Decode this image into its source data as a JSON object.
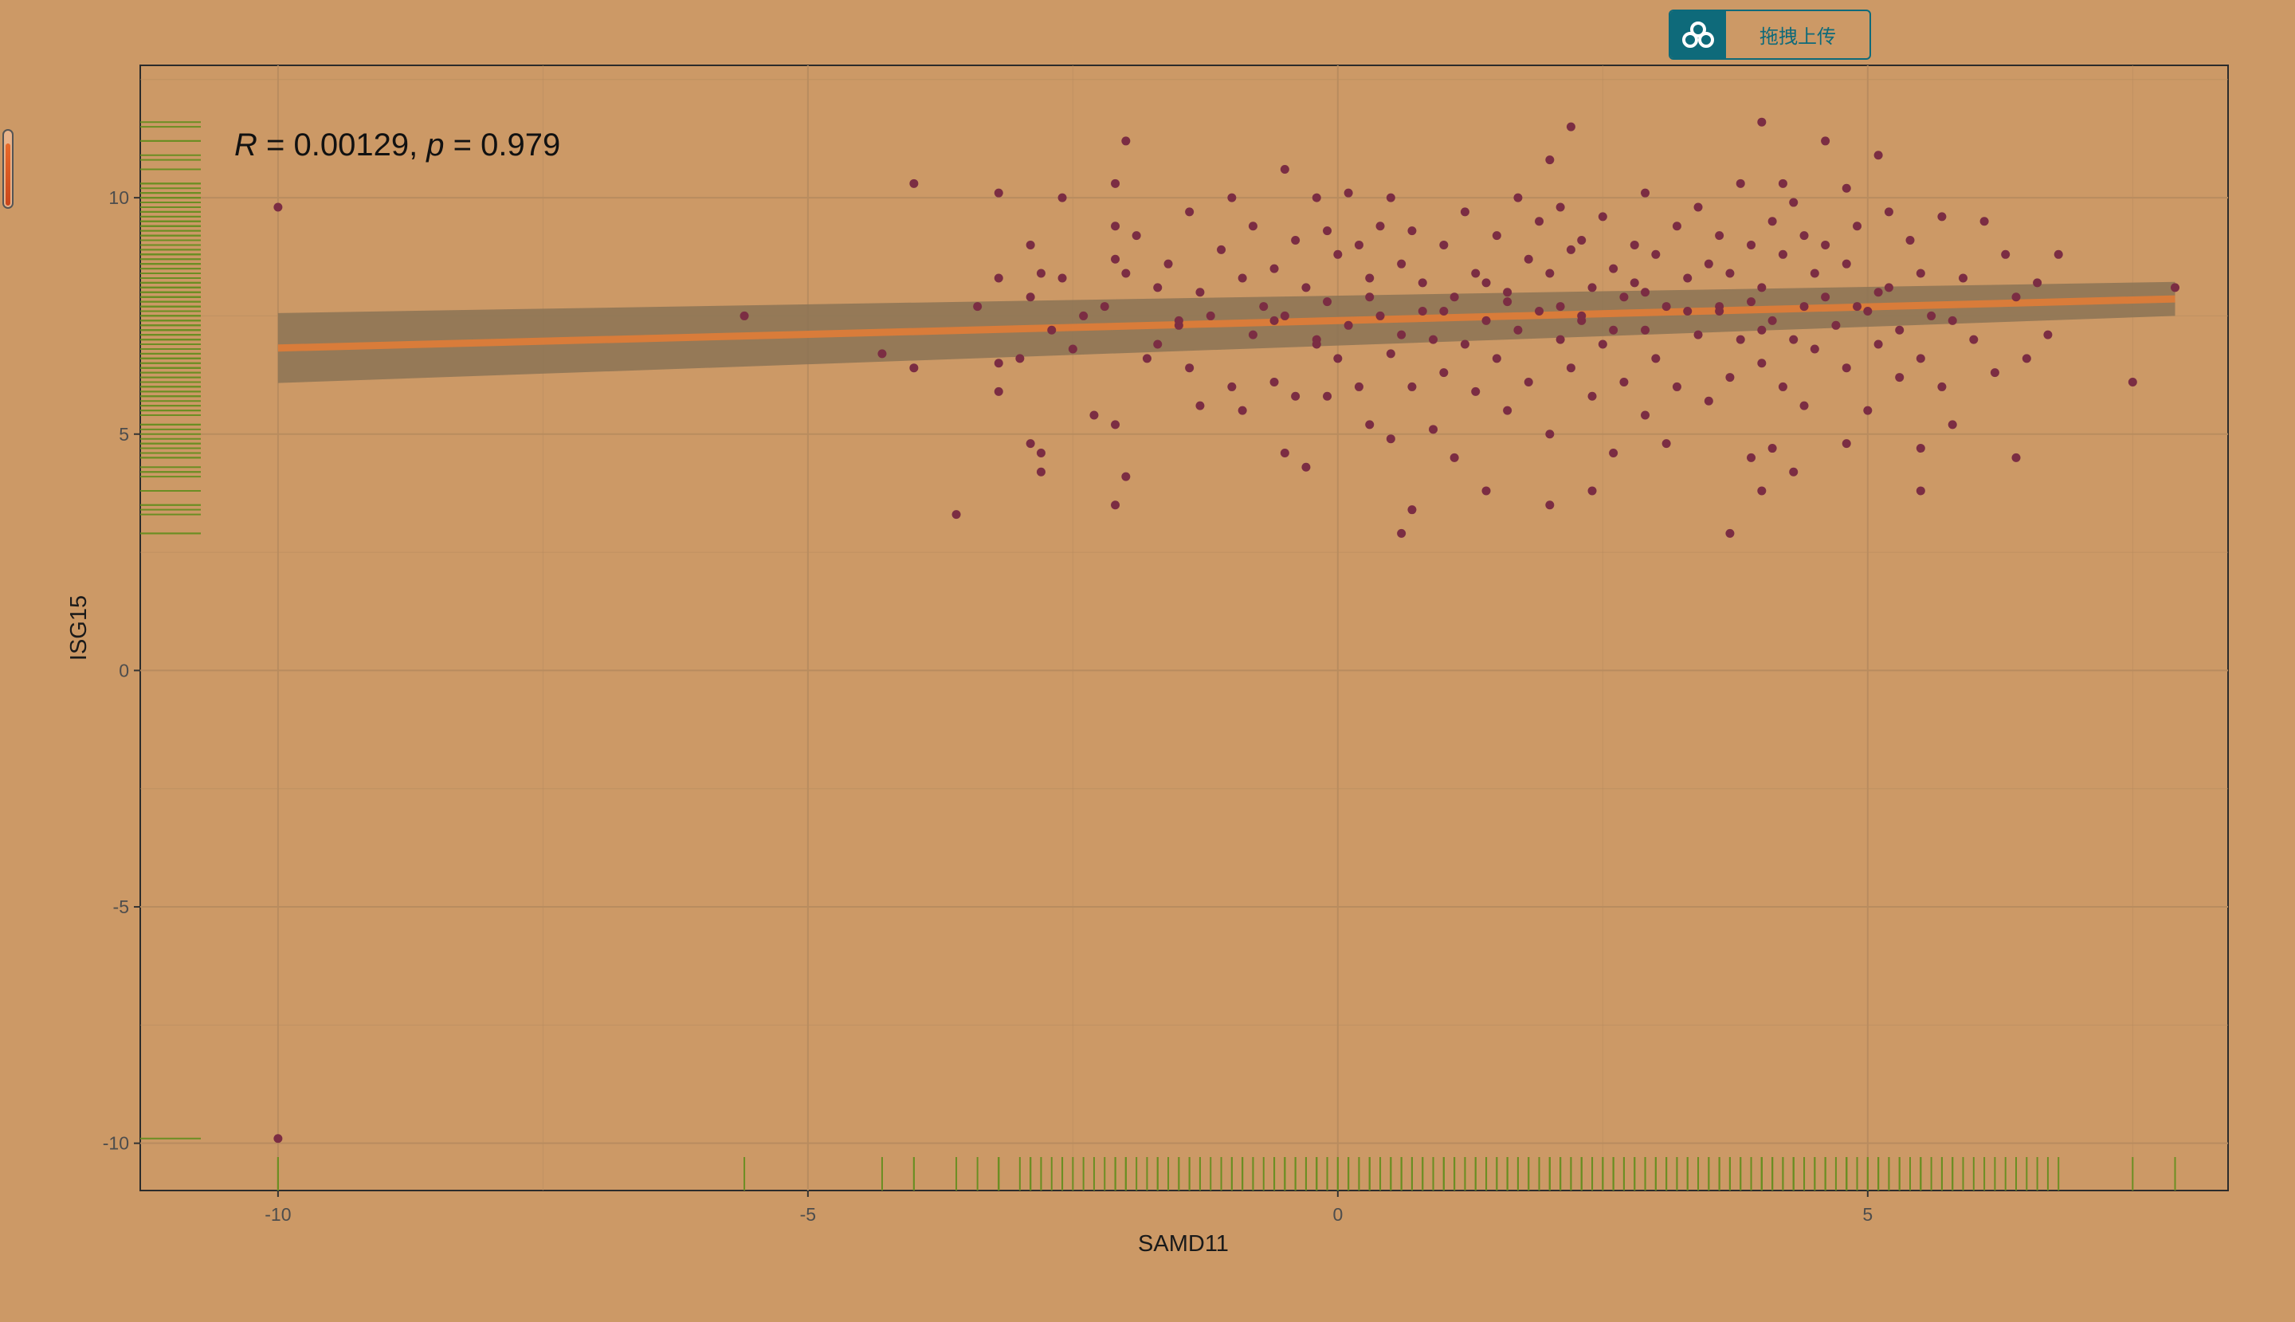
{
  "upload_widget": {
    "label": "拖拽上传",
    "icon": "cloud-upload-icon"
  },
  "side_slider": {
    "level": 0.85
  },
  "chart_data": {
    "type": "scatter",
    "xlabel": "SAMD11",
    "ylabel": "ISG15",
    "x_ticks": [
      -10,
      -5,
      0,
      5
    ],
    "y_ticks": [
      -10,
      -5,
      0,
      5,
      10
    ],
    "xlim": [
      -11.3,
      8.4
    ],
    "ylim": [
      -11.0,
      12.8
    ],
    "grid": true,
    "annotation": {
      "r_symbol": "R",
      "r_rest": " = 0.00129, ",
      "p_symbol": "p",
      "p_rest": " = 0.979"
    },
    "regression": {
      "x": [
        -10,
        7.9
      ],
      "y": [
        6.82,
        7.86
      ],
      "ci_lower": [
        6.08,
        7.5
      ],
      "ci_upper": [
        7.56,
        8.22
      ]
    },
    "rug": true,
    "colors": {
      "points": "#7B2D43",
      "line": "#D97C3A",
      "ribbon": "#8B7355",
      "rug": "#6B8E23",
      "background": "#CC9966"
    },
    "points": [
      [
        -10.0,
        9.8
      ],
      [
        -10.0,
        -9.9
      ],
      [
        -5.6,
        7.5
      ],
      [
        -4.3,
        6.7
      ],
      [
        -4.0,
        10.3
      ],
      [
        -4.0,
        6.4
      ],
      [
        -3.6,
        3.3
      ],
      [
        -3.4,
        7.7
      ],
      [
        -3.2,
        10.1
      ],
      [
        -3.2,
        8.3
      ],
      [
        -3.2,
        6.5
      ],
      [
        -3.2,
        5.9
      ],
      [
        -3.0,
        6.6
      ],
      [
        -2.9,
        9.0
      ],
      [
        -2.9,
        7.9
      ],
      [
        -2.9,
        4.8
      ],
      [
        -2.8,
        8.4
      ],
      [
        -2.8,
        4.6
      ],
      [
        -2.8,
        4.2
      ],
      [
        -2.7,
        7.2
      ],
      [
        -2.6,
        10.0
      ],
      [
        -2.6,
        8.3
      ],
      [
        -2.5,
        6.8
      ],
      [
        -2.4,
        7.5
      ],
      [
        -2.3,
        5.4
      ],
      [
        -2.2,
        7.7
      ],
      [
        -2.1,
        10.3
      ],
      [
        -2.1,
        9.4
      ],
      [
        -2.1,
        8.7
      ],
      [
        -2.1,
        5.2
      ],
      [
        -2.1,
        3.5
      ],
      [
        -2.0,
        11.2
      ],
      [
        -2.0,
        8.4
      ],
      [
        -2.0,
        4.1
      ],
      [
        -1.9,
        9.2
      ],
      [
        -1.8,
        6.6
      ],
      [
        -1.7,
        8.1
      ],
      [
        -1.7,
        6.9
      ],
      [
        -1.6,
        8.6
      ],
      [
        -1.5,
        7.3
      ],
      [
        -1.4,
        9.7
      ],
      [
        -1.4,
        6.4
      ],
      [
        -1.3,
        8.0
      ],
      [
        -1.3,
        5.6
      ],
      [
        -1.2,
        7.5
      ],
      [
        -1.1,
        8.9
      ],
      [
        -1.0,
        10.0
      ],
      [
        -1.0,
        6.0
      ],
      [
        -0.9,
        8.3
      ],
      [
        -0.9,
        5.5
      ],
      [
        -0.8,
        7.1
      ],
      [
        -0.8,
        9.4
      ],
      [
        -0.7,
        7.7
      ],
      [
        -0.6,
        8.5
      ],
      [
        -0.6,
        6.1
      ],
      [
        -0.5,
        10.6
      ],
      [
        -0.5,
        7.5
      ],
      [
        -0.5,
        4.6
      ],
      [
        -0.4,
        9.1
      ],
      [
        -0.4,
        5.8
      ],
      [
        -0.3,
        8.1
      ],
      [
        -0.3,
        4.3
      ],
      [
        -0.2,
        10.0
      ],
      [
        -0.2,
        7.0
      ],
      [
        -0.1,
        9.3
      ],
      [
        -0.1,
        7.8
      ],
      [
        -0.1,
        5.8
      ],
      [
        0.0,
        8.8
      ],
      [
        0.0,
        6.6
      ],
      [
        0.1,
        10.1
      ],
      [
        0.1,
        7.3
      ],
      [
        0.2,
        9.0
      ],
      [
        0.2,
        6.0
      ],
      [
        0.3,
        8.3
      ],
      [
        0.3,
        5.2
      ],
      [
        0.4,
        9.4
      ],
      [
        0.4,
        7.5
      ],
      [
        0.5,
        10.0
      ],
      [
        0.5,
        6.7
      ],
      [
        0.5,
        4.9
      ],
      [
        0.6,
        8.6
      ],
      [
        0.6,
        7.1
      ],
      [
        0.6,
        2.9
      ],
      [
        0.7,
        9.3
      ],
      [
        0.7,
        6.0
      ],
      [
        0.7,
        3.4
      ],
      [
        0.8,
        8.2
      ],
      [
        0.9,
        7.0
      ],
      [
        0.9,
        5.1
      ],
      [
        1.0,
        9.0
      ],
      [
        1.0,
        6.3
      ],
      [
        1.1,
        7.9
      ],
      [
        1.1,
        4.5
      ],
      [
        1.2,
        9.7
      ],
      [
        1.2,
        6.9
      ],
      [
        1.3,
        8.4
      ],
      [
        1.3,
        5.9
      ],
      [
        1.4,
        7.4
      ],
      [
        1.4,
        3.8
      ],
      [
        1.5,
        9.2
      ],
      [
        1.5,
        6.6
      ],
      [
        1.6,
        8.0
      ],
      [
        1.6,
        5.5
      ],
      [
        1.7,
        10.0
      ],
      [
        1.7,
        7.2
      ],
      [
        1.8,
        8.7
      ],
      [
        1.8,
        6.1
      ],
      [
        1.9,
        9.5
      ],
      [
        1.9,
        7.6
      ],
      [
        2.0,
        10.8
      ],
      [
        2.0,
        8.4
      ],
      [
        2.0,
        5.0
      ],
      [
        2.0,
        3.5
      ],
      [
        2.1,
        9.8
      ],
      [
        2.1,
        7.0
      ],
      [
        2.2,
        11.5
      ],
      [
        2.2,
        8.9
      ],
      [
        2.2,
        6.4
      ],
      [
        2.3,
        9.1
      ],
      [
        2.3,
        7.4
      ],
      [
        2.4,
        8.1
      ],
      [
        2.4,
        5.8
      ],
      [
        2.4,
        3.8
      ],
      [
        2.5,
        9.6
      ],
      [
        2.5,
        6.9
      ],
      [
        2.6,
        8.5
      ],
      [
        2.6,
        4.6
      ],
      [
        2.7,
        7.9
      ],
      [
        2.7,
        6.1
      ],
      [
        2.8,
        9.0
      ],
      [
        2.8,
        8.2
      ],
      [
        2.9,
        10.1
      ],
      [
        2.9,
        7.2
      ],
      [
        2.9,
        5.4
      ],
      [
        3.0,
        8.8
      ],
      [
        3.0,
        6.6
      ],
      [
        3.1,
        7.7
      ],
      [
        3.1,
        4.8
      ],
      [
        3.2,
        9.4
      ],
      [
        3.2,
        6.0
      ],
      [
        3.3,
        8.3
      ],
      [
        3.4,
        9.8
      ],
      [
        3.4,
        7.1
      ],
      [
        3.5,
        8.6
      ],
      [
        3.5,
        5.7
      ],
      [
        3.6,
        9.2
      ],
      [
        3.6,
        7.7
      ],
      [
        3.7,
        8.4
      ],
      [
        3.7,
        6.2
      ],
      [
        3.7,
        2.9
      ],
      [
        3.8,
        10.3
      ],
      [
        3.8,
        7.0
      ],
      [
        3.9,
        9.0
      ],
      [
        3.9,
        4.5
      ],
      [
        4.0,
        11.6
      ],
      [
        4.0,
        8.1
      ],
      [
        4.0,
        6.5
      ],
      [
        4.0,
        3.8
      ],
      [
        4.1,
        9.5
      ],
      [
        4.1,
        7.4
      ],
      [
        4.1,
        4.7
      ],
      [
        4.2,
        10.3
      ],
      [
        4.2,
        8.8
      ],
      [
        4.2,
        6.0
      ],
      [
        4.3,
        9.9
      ],
      [
        4.3,
        7.0
      ],
      [
        4.3,
        4.2
      ],
      [
        4.4,
        9.2
      ],
      [
        4.4,
        7.7
      ],
      [
        4.4,
        5.6
      ],
      [
        4.5,
        8.4
      ],
      [
        4.5,
        6.8
      ],
      [
        4.6,
        11.2
      ],
      [
        4.6,
        9.0
      ],
      [
        4.7,
        7.3
      ],
      [
        4.8,
        10.2
      ],
      [
        4.8,
        8.6
      ],
      [
        4.8,
        6.4
      ],
      [
        4.8,
        4.8
      ],
      [
        4.9,
        9.4
      ],
      [
        5.0,
        7.6
      ],
      [
        5.0,
        5.5
      ],
      [
        5.1,
        10.9
      ],
      [
        5.1,
        8.0
      ],
      [
        5.1,
        6.9
      ],
      [
        5.2,
        9.7
      ],
      [
        5.3,
        7.2
      ],
      [
        5.3,
        6.2
      ],
      [
        5.4,
        9.1
      ],
      [
        5.5,
        8.4
      ],
      [
        5.5,
        6.6
      ],
      [
        5.5,
        4.7
      ],
      [
        5.5,
        3.8
      ],
      [
        5.6,
        7.5
      ],
      [
        5.7,
        9.6
      ],
      [
        5.7,
        6.0
      ],
      [
        5.8,
        5.2
      ],
      [
        5.9,
        8.3
      ],
      [
        6.0,
        7.0
      ],
      [
        6.1,
        9.5
      ],
      [
        6.2,
        6.3
      ],
      [
        6.3,
        8.8
      ],
      [
        6.4,
        7.9
      ],
      [
        6.4,
        4.5
      ],
      [
        6.5,
        6.6
      ],
      [
        6.6,
        8.2
      ],
      [
        6.7,
        7.1
      ],
      [
        6.8,
        8.8
      ],
      [
        7.5,
        6.1
      ],
      [
        7.9,
        8.1
      ],
      [
        -0.6,
        7.4
      ],
      [
        0.3,
        7.9
      ],
      [
        1.0,
        7.6
      ],
      [
        1.6,
        7.8
      ],
      [
        2.3,
        7.5
      ],
      [
        2.9,
        8.0
      ],
      [
        3.3,
        7.6
      ],
      [
        3.9,
        7.8
      ],
      [
        4.6,
        7.9
      ],
      [
        5.2,
        8.1
      ],
      [
        -1.5,
        7.4
      ],
      [
        0.8,
        7.6
      ],
      [
        2.1,
        7.7
      ],
      [
        3.6,
        7.6
      ],
      [
        4.9,
        7.7
      ],
      [
        -0.2,
        6.9
      ],
      [
        1.4,
        8.2
      ],
      [
        2.6,
        7.2
      ],
      [
        4.0,
        7.2
      ],
      [
        5.8,
        7.4
      ]
    ]
  }
}
